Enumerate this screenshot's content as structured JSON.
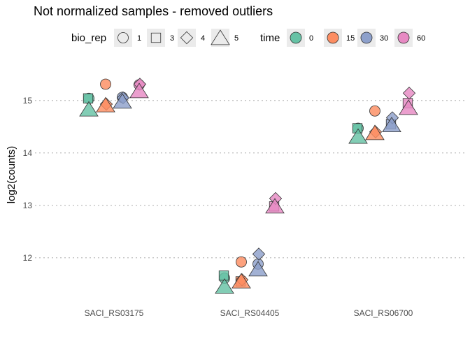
{
  "chart_data": {
    "type": "scatter",
    "title": "Not normalized samples - removed outliers",
    "xlabel": "",
    "ylabel": "log2(counts)",
    "categories": [
      "SACI_RS03175",
      "SACI_RS04405",
      "SACI_RS06700"
    ],
    "y_ticks": [
      12,
      13,
      14,
      15
    ],
    "ylim": [
      11.25,
      15.65
    ],
    "grid": "horizontal dotted",
    "legend_position": "top",
    "legends": {
      "shape": {
        "title": "bio_rep",
        "items": [
          {
            "label": "1",
            "shape": "circle"
          },
          {
            "label": "3",
            "shape": "square"
          },
          {
            "label": "4",
            "shape": "diamond"
          },
          {
            "label": "5",
            "shape": "triangle"
          }
        ]
      },
      "color": {
        "title": "time",
        "items": [
          {
            "label": "0",
            "color": "#66c2a5"
          },
          {
            "label": "15",
            "color": "#fc8d62"
          },
          {
            "label": "30",
            "color": "#8da0cb"
          },
          {
            "label": "60",
            "color": "#e78ac3"
          }
        ]
      }
    },
    "points": [
      {
        "gene": "SACI_RS03175",
        "time": "0",
        "bio_rep": "1",
        "y": 15.04
      },
      {
        "gene": "SACI_RS03175",
        "time": "0",
        "bio_rep": "3",
        "y": 15.04
      },
      {
        "gene": "SACI_RS03175",
        "time": "0",
        "bio_rep": "5",
        "y": 14.82
      },
      {
        "gene": "SACI_RS03175",
        "time": "15",
        "bio_rep": "1",
        "y": 15.31
      },
      {
        "gene": "SACI_RS03175",
        "time": "15",
        "bio_rep": "4",
        "y": 14.93
      },
      {
        "gene": "SACI_RS03175",
        "time": "15",
        "bio_rep": "5",
        "y": 14.9
      },
      {
        "gene": "SACI_RS03175",
        "time": "30",
        "bio_rep": "1",
        "y": 15.06
      },
      {
        "gene": "SACI_RS03175",
        "time": "30",
        "bio_rep": "4",
        "y": 15.05
      },
      {
        "gene": "SACI_RS03175",
        "time": "30",
        "bio_rep": "5",
        "y": 14.97
      },
      {
        "gene": "SACI_RS03175",
        "time": "60",
        "bio_rep": "1",
        "y": 15.3
      },
      {
        "gene": "SACI_RS03175",
        "time": "60",
        "bio_rep": "4",
        "y": 15.31
      },
      {
        "gene": "SACI_RS03175",
        "time": "60",
        "bio_rep": "5",
        "y": 15.17
      },
      {
        "gene": "SACI_RS04405",
        "time": "0",
        "bio_rep": "1",
        "y": 11.61
      },
      {
        "gene": "SACI_RS04405",
        "time": "0",
        "bio_rep": "3",
        "y": 11.66
      },
      {
        "gene": "SACI_RS04405",
        "time": "0",
        "bio_rep": "5",
        "y": 11.44
      },
      {
        "gene": "SACI_RS04405",
        "time": "15",
        "bio_rep": "1",
        "y": 11.92
      },
      {
        "gene": "SACI_RS04405",
        "time": "15",
        "bio_rep": "3",
        "y": 11.55
      },
      {
        "gene": "SACI_RS04405",
        "time": "15",
        "bio_rep": "4",
        "y": 11.58
      },
      {
        "gene": "SACI_RS04405",
        "time": "15",
        "bio_rep": "5",
        "y": 11.54
      },
      {
        "gene": "SACI_RS04405",
        "time": "30",
        "bio_rep": "1",
        "y": 11.88
      },
      {
        "gene": "SACI_RS04405",
        "time": "30",
        "bio_rep": "4",
        "y": 12.07
      },
      {
        "gene": "SACI_RS04405",
        "time": "30",
        "bio_rep": "5",
        "y": 11.77
      },
      {
        "gene": "SACI_RS04405",
        "time": "60",
        "bio_rep": "3",
        "y": 12.98
      },
      {
        "gene": "SACI_RS04405",
        "time": "60",
        "bio_rep": "4",
        "y": 13.13
      },
      {
        "gene": "SACI_RS04405",
        "time": "60",
        "bio_rep": "5",
        "y": 12.97
      },
      {
        "gene": "SACI_RS06700",
        "time": "0",
        "bio_rep": "1",
        "y": 14.47
      },
      {
        "gene": "SACI_RS06700",
        "time": "0",
        "bio_rep": "3",
        "y": 14.47
      },
      {
        "gene": "SACI_RS06700",
        "time": "0",
        "bio_rep": "5",
        "y": 14.3
      },
      {
        "gene": "SACI_RS06700",
        "time": "15",
        "bio_rep": "1",
        "y": 14.8
      },
      {
        "gene": "SACI_RS06700",
        "time": "15",
        "bio_rep": "4",
        "y": 14.4
      },
      {
        "gene": "SACI_RS06700",
        "time": "15",
        "bio_rep": "5",
        "y": 14.37
      },
      {
        "gene": "SACI_RS06700",
        "time": "30",
        "bio_rep": "3",
        "y": 14.55
      },
      {
        "gene": "SACI_RS06700",
        "time": "30",
        "bio_rep": "4",
        "y": 14.67
      },
      {
        "gene": "SACI_RS06700",
        "time": "30",
        "bio_rep": "5",
        "y": 14.52
      },
      {
        "gene": "SACI_RS06700",
        "time": "60",
        "bio_rep": "3",
        "y": 14.95
      },
      {
        "gene": "SACI_RS06700",
        "time": "60",
        "bio_rep": "4",
        "y": 15.14
      },
      {
        "gene": "SACI_RS06700",
        "time": "60",
        "bio_rep": "5",
        "y": 14.85
      }
    ]
  }
}
